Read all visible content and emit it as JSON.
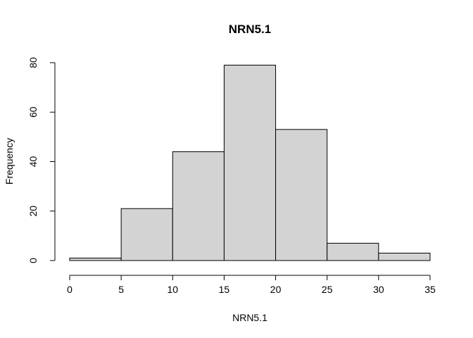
{
  "chart_data": {
    "type": "bar",
    "subtype": "histogram",
    "title": "NRN5.1",
    "xlabel": "NRN5.1",
    "ylabel": "Frequency",
    "bins": [
      {
        "start": 0,
        "end": 5,
        "count": 1
      },
      {
        "start": 5,
        "end": 10,
        "count": 21
      },
      {
        "start": 10,
        "end": 15,
        "count": 44
      },
      {
        "start": 15,
        "end": 20,
        "count": 79
      },
      {
        "start": 20,
        "end": 25,
        "count": 53
      },
      {
        "start": 25,
        "end": 30,
        "count": 7
      },
      {
        "start": 30,
        "end": 35,
        "count": 3
      }
    ],
    "xlim": [
      0,
      35
    ],
    "ylim": [
      0,
      80
    ],
    "x_ticks": [
      0,
      5,
      10,
      15,
      20,
      25,
      30,
      35
    ],
    "x_tick_labels": [
      "0",
      "5",
      "10",
      "15",
      "20",
      "25",
      "30",
      "35"
    ],
    "y_ticks": [
      0,
      20,
      40,
      60,
      80
    ],
    "y_tick_labels": [
      "0",
      "20",
      "40",
      "60",
      "80"
    ],
    "bar_color": "#d3d3d3",
    "bar_edge_color": "#000000",
    "grid": false,
    "legend": "none"
  }
}
